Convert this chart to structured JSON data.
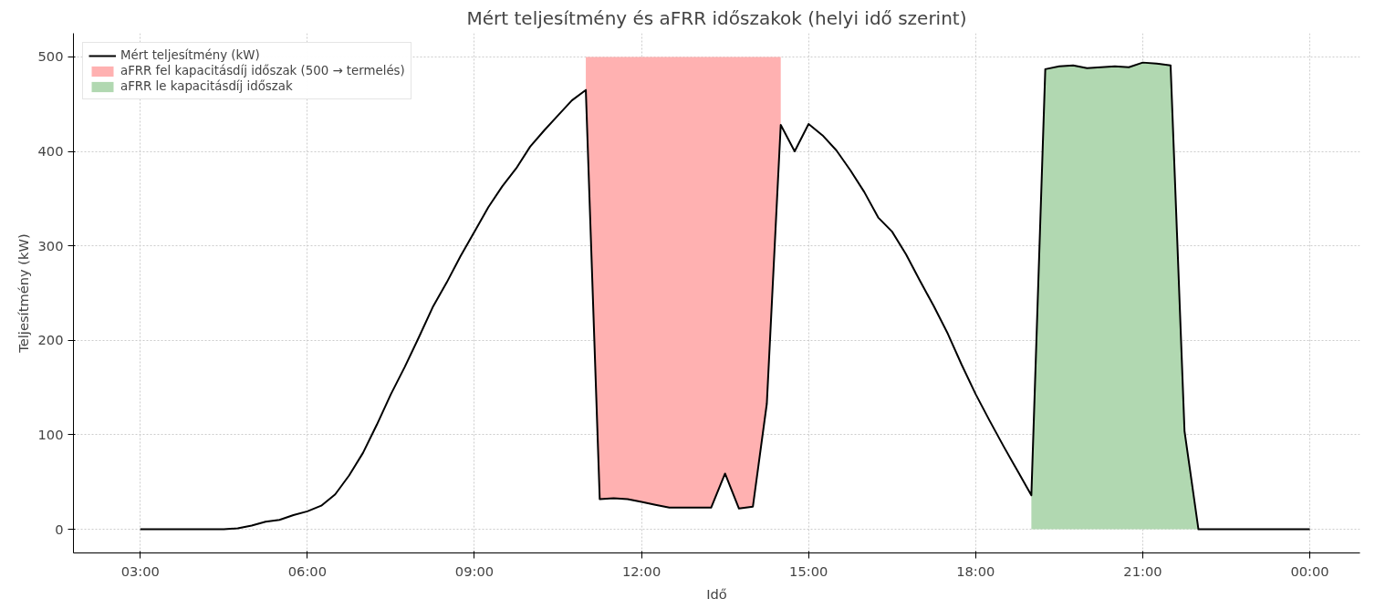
{
  "chart_data": {
    "type": "line",
    "title": "Mért teljesítmény és aFRR időszakok (helyi idő szerint)",
    "xlabel": "Idő",
    "ylabel": "Teljesítmény (kW)",
    "xlim": [
      1.8,
      24.9
    ],
    "xticks": [
      {
        "value": 3,
        "label": "03:00"
      },
      {
        "value": 6,
        "label": "06:00"
      },
      {
        "value": 9,
        "label": "09:00"
      },
      {
        "value": 12,
        "label": "12:00"
      },
      {
        "value": 15,
        "label": "15:00"
      },
      {
        "value": 18,
        "label": "18:00"
      },
      {
        "value": 21,
        "label": "21:00"
      },
      {
        "value": 24,
        "label": "00:00"
      }
    ],
    "ylim": [
      -25,
      525
    ],
    "yticks": [
      0,
      100,
      200,
      300,
      400,
      500
    ],
    "grid": true,
    "legend": "top left",
    "line_style": "solid",
    "marker": "none",
    "series": [
      {
        "name": "Mért teljesítmény (kW)",
        "color": "#000000",
        "x": [
          3,
          3.25,
          3.5,
          3.75,
          4,
          4.25,
          4.5,
          4.75,
          5,
          5.25,
          5.5,
          5.75,
          6,
          6.25,
          6.5,
          6.75,
          7,
          7.25,
          7.5,
          7.75,
          8,
          8.25,
          8.5,
          8.75,
          9,
          9.25,
          9.5,
          9.75,
          10,
          10.25,
          10.5,
          10.75,
          11,
          11.25,
          11.5,
          11.75,
          12,
          12.25,
          12.5,
          12.75,
          13,
          13.25,
          13.5,
          13.75,
          14,
          14.25,
          14.5,
          14.75,
          15,
          15.25,
          15.5,
          15.75,
          16,
          16.25,
          16.5,
          16.75,
          17,
          17.25,
          17.5,
          17.75,
          18,
          18.25,
          18.5,
          18.75,
          19,
          19.25,
          19.5,
          19.75,
          20,
          20.25,
          20.5,
          20.75,
          21,
          21.25,
          21.5,
          21.75,
          22,
          22.25,
          22.5,
          22.75,
          23,
          23.25,
          23.5,
          23.75,
          24
        ],
        "values": [
          0,
          0,
          0,
          0,
          0,
          0,
          0,
          1,
          4,
          8,
          10,
          15,
          19,
          25,
          37,
          57,
          81,
          111,
          143,
          172,
          203,
          235,
          261,
          289,
          315,
          341,
          363,
          382,
          405,
          422,
          438,
          454,
          465,
          32,
          33,
          32,
          29,
          26,
          23,
          23,
          23,
          23,
          59,
          22,
          24,
          133,
          428,
          400,
          429,
          417,
          401,
          380,
          357,
          330,
          315,
          291,
          263,
          236,
          207,
          174,
          143,
          115,
          88,
          62,
          36,
          487,
          490,
          491,
          488,
          489,
          490,
          489,
          494,
          493,
          491,
          104,
          0,
          0,
          0,
          0,
          0,
          0,
          0,
          0,
          0
        ]
      },
      {
        "name": "aFRR fel kapacitásdíj időszak (500 → termelés)",
        "type": "area",
        "color": "#ffb1b1",
        "x": [
          11,
          11.25,
          11.5,
          11.75,
          12,
          12.25,
          12.5,
          12.75,
          13,
          13.25,
          13.5,
          13.75,
          14,
          14.25,
          14.5
        ],
        "values": [
          500,
          500,
          500,
          500,
          500,
          500,
          500,
          500,
          500,
          500,
          500,
          500,
          500,
          500,
          500
        ]
      },
      {
        "name": "aFRR le kapacitásdíj időszak",
        "type": "area",
        "color": "#b1d8b1",
        "x": [
          19,
          19.25,
          19.5,
          19.75,
          20,
          20.25,
          20.5,
          20.75,
          21,
          21.25,
          21.5,
          21.75,
          22
        ],
        "values": [
          36,
          487,
          490,
          491,
          488,
          489,
          490,
          489,
          494,
          493,
          491,
          104,
          0
        ]
      }
    ]
  }
}
